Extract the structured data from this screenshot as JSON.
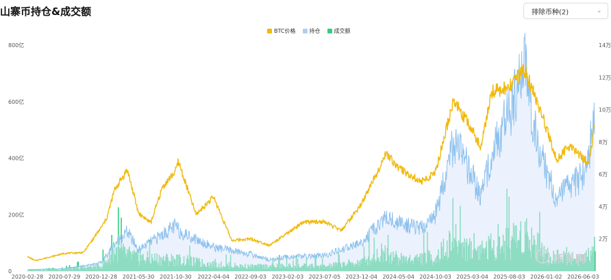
{
  "page": {
    "title": "山寨币持仓&成交额"
  },
  "filter": {
    "label": "排除币种(2)"
  },
  "legend": [
    {
      "label": "BTC价格",
      "color": "#f0b90b"
    },
    {
      "label": "持仓",
      "color": "#b5cdf5"
    },
    {
      "label": "成交额",
      "color": "#2fcf7c"
    }
  ],
  "watermark": {
    "text": "币界网"
  },
  "chart_data": {
    "type": "line",
    "title": "山寨币持仓&成交额",
    "x_tick_labels": [
      "2020-02-28",
      "2020-07-29",
      "2020-12-28",
      "2021-05-30",
      "2021-10-30",
      "2022-04-04",
      "2022-09-03",
      "2023-02-03",
      "2023-07-05",
      "2023-12-04",
      "2024-05-04",
      "2024-10-03",
      "2025-03-04",
      "2025-08-03",
      "2026-01-02",
      "2026-06-03"
    ],
    "y_left": {
      "ylim": [
        0,
        800
      ],
      "tick_labels": [
        "0",
        "200亿",
        "400亿",
        "600亿",
        "800亿"
      ],
      "tick_values": [
        0,
        200,
        400,
        600,
        800
      ]
    },
    "y_right": {
      "ylim": [
        0,
        140000
      ],
      "tick_labels": [
        "2万",
        "4万",
        "6万",
        "8万",
        "10万",
        "12万",
        "14万"
      ],
      "tick_values": [
        20000,
        40000,
        60000,
        80000,
        100000,
        120000,
        140000
      ]
    },
    "grid": false,
    "legend_position": "top-center",
    "series": [
      {
        "name": "BTC价格",
        "axis": "right",
        "color": "#f0b90b",
        "points": [
          [
            "2020-02-28",
            9000
          ],
          [
            "2020-04-01",
            6500
          ],
          [
            "2020-07-29",
            11000
          ],
          [
            "2020-10-15",
            11500
          ],
          [
            "2020-12-28",
            27000
          ],
          [
            "2021-01-20",
            33000
          ],
          [
            "2021-02-20",
            50000
          ],
          [
            "2021-04-14",
            63000
          ],
          [
            "2021-05-30",
            36000
          ],
          [
            "2021-07-20",
            30000
          ],
          [
            "2021-09-06",
            52000
          ],
          [
            "2021-10-30",
            62000
          ],
          [
            "2021-11-10",
            68000
          ],
          [
            "2022-01-22",
            35000
          ],
          [
            "2022-04-04",
            46000
          ],
          [
            "2022-06-18",
            19000
          ],
          [
            "2022-09-03",
            20000
          ],
          [
            "2022-11-21",
            16000
          ],
          [
            "2023-02-03",
            23500
          ],
          [
            "2023-04-14",
            30500
          ],
          [
            "2023-07-05",
            30500
          ],
          [
            "2023-09-11",
            25000
          ],
          [
            "2023-12-04",
            41500
          ],
          [
            "2024-03-14",
            73000
          ],
          [
            "2024-05-04",
            64000
          ],
          [
            "2024-08-05",
            55000
          ],
          [
            "2024-10-03",
            61000
          ],
          [
            "2024-12-17",
            106000
          ],
          [
            "2025-03-04",
            87000
          ],
          [
            "2025-04-08",
            77000
          ],
          [
            "2025-05-22",
            111000
          ],
          [
            "2025-08-03",
            114000
          ],
          [
            "2025-10-06",
            125000
          ],
          [
            "2026-01-02",
            89000
          ],
          [
            "2026-02-15",
            69000
          ],
          [
            "2026-04-10",
            78000
          ],
          [
            "2026-06-03",
            70000
          ],
          [
            "2026-06-25",
            66000
          ],
          [
            "2026-07-20",
            88000
          ]
        ]
      },
      {
        "name": "持仓",
        "axis": "left",
        "color": "#8ec1ee",
        "points": [
          [
            "2020-02-28",
            5
          ],
          [
            "2020-07-29",
            8
          ],
          [
            "2020-12-28",
            30
          ],
          [
            "2021-02-20",
            95
          ],
          [
            "2021-04-14",
            140
          ],
          [
            "2021-05-30",
            75
          ],
          [
            "2021-09-06",
            130
          ],
          [
            "2021-10-30",
            160
          ],
          [
            "2021-11-15",
            140
          ],
          [
            "2022-04-04",
            85
          ],
          [
            "2022-09-03",
            60
          ],
          [
            "2022-11-21",
            40
          ],
          [
            "2023-02-03",
            50
          ],
          [
            "2023-07-05",
            55
          ],
          [
            "2023-12-04",
            100
          ],
          [
            "2024-03-14",
            190
          ],
          [
            "2024-05-04",
            170
          ],
          [
            "2024-08-05",
            150
          ],
          [
            "2024-10-03",
            200
          ],
          [
            "2024-12-17",
            460
          ],
          [
            "2025-03-04",
            330
          ],
          [
            "2025-04-08",
            260
          ],
          [
            "2025-05-22",
            420
          ],
          [
            "2025-08-03",
            560
          ],
          [
            "2025-09-10",
            640
          ],
          [
            "2025-10-06",
            760
          ],
          [
            "2025-11-10",
            520
          ],
          [
            "2026-01-02",
            350
          ],
          [
            "2026-02-15",
            260
          ],
          [
            "2026-04-10",
            300
          ],
          [
            "2026-06-03",
            340
          ],
          [
            "2026-06-25",
            420
          ],
          [
            "2026-07-20",
            520
          ]
        ]
      },
      {
        "name": "成交额",
        "axis": "left",
        "color": "#2fcf7c",
        "points": [
          [
            "2020-02-28",
            5
          ],
          [
            "2020-07-29",
            8
          ],
          [
            "2020-12-28",
            20
          ],
          [
            "2021-02-20",
            80
          ],
          [
            "2021-05-30",
            50
          ],
          [
            "2021-10-30",
            45
          ],
          [
            "2022-04-04",
            25
          ],
          [
            "2022-09-03",
            18
          ],
          [
            "2023-02-03",
            20
          ],
          [
            "2023-07-05",
            18
          ],
          [
            "2023-12-04",
            35
          ],
          [
            "2024-03-14",
            80
          ],
          [
            "2024-05-04",
            45
          ],
          [
            "2024-10-03",
            55
          ],
          [
            "2024-12-17",
            120
          ],
          [
            "2025-03-04",
            80
          ],
          [
            "2025-08-03",
            110
          ],
          [
            "2025-10-06",
            150
          ],
          [
            "2026-01-02",
            60
          ],
          [
            "2026-06-03",
            50
          ],
          [
            "2026-07-20",
            70
          ]
        ]
      }
    ]
  }
}
